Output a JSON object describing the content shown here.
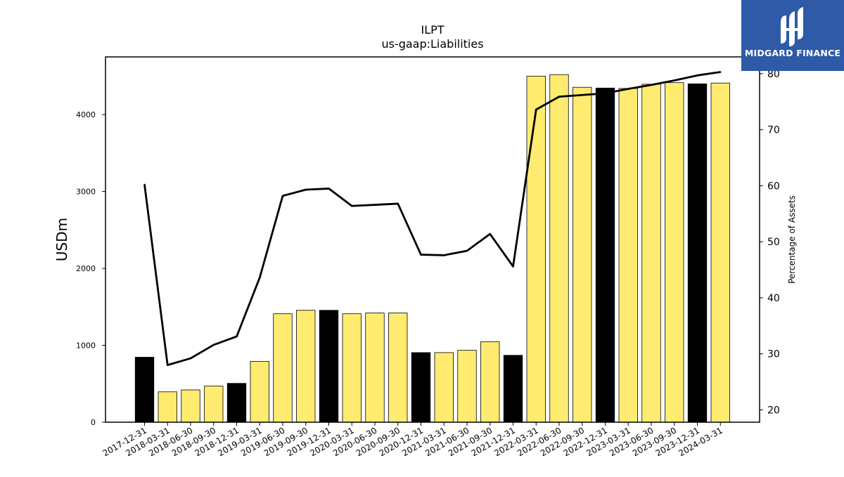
{
  "brand": {
    "name": "MIDGARD FINANCE",
    "logo_icon": "midgard-logo-icon",
    "color": "#2e5aa8"
  },
  "chart_data": {
    "type": "bar",
    "title": "ILPT",
    "subtitle": "us-gaap:Liabilities",
    "ylabel": "USDm",
    "y2label": "Percentage of Assets",
    "ylim": [
      0,
      4750
    ],
    "y2lim": [
      17.8,
      83
    ],
    "yticks": [
      0,
      1000,
      2000,
      3000,
      4000
    ],
    "y2ticks": [
      20,
      30,
      40,
      50,
      60,
      70,
      80
    ],
    "categories": [
      "2017-12-31",
      "2018-03-31",
      "2018-06-30",
      "2018-09-30",
      "2018-12-31",
      "2019-03-31",
      "2019-06-30",
      "2019-09-30",
      "2019-12-31",
      "2020-03-31",
      "2020-06-30",
      "2020-09-30",
      "2020-12-31",
      "2021-03-31",
      "2021-06-30",
      "2021-09-30",
      "2021-12-31",
      "2022-03-31",
      "2022-06-30",
      "2022-09-30",
      "2022-12-31",
      "2023-03-31",
      "2023-06-30",
      "2023-09-30",
      "2023-12-31",
      "2024-03-31"
    ],
    "series": [
      {
        "type": "bar",
        "axis": "left",
        "values": [
          845,
          395,
          420,
          470,
          505,
          790,
          1410,
          1455,
          1455,
          1410,
          1420,
          1420,
          905,
          905,
          935,
          1045,
          870,
          4500,
          4520,
          4355,
          4345,
          4340,
          4395,
          4415,
          4400,
          4410
        ],
        "annual_flags": [
          true,
          false,
          false,
          false,
          true,
          false,
          false,
          false,
          true,
          false,
          false,
          false,
          true,
          false,
          false,
          false,
          true,
          false,
          false,
          false,
          true,
          false,
          false,
          false,
          true,
          false
        ]
      },
      {
        "type": "line",
        "axis": "right",
        "values": [
          60.2,
          28.0,
          29.2,
          31.6,
          33.1,
          43.6,
          58.2,
          59.3,
          59.5,
          56.4,
          56.6,
          56.8,
          47.7,
          47.6,
          48.4,
          51.4,
          45.6,
          73.6,
          75.9,
          76.2,
          76.5,
          77.3,
          78.0,
          78.8,
          79.7,
          80.3
        ]
      }
    ],
    "colors": {
      "annual_bar": "#000000",
      "quarter_bar": "#ffeb70",
      "line": "#000000",
      "axis": "#000000"
    },
    "grid": false,
    "legend": "none"
  }
}
